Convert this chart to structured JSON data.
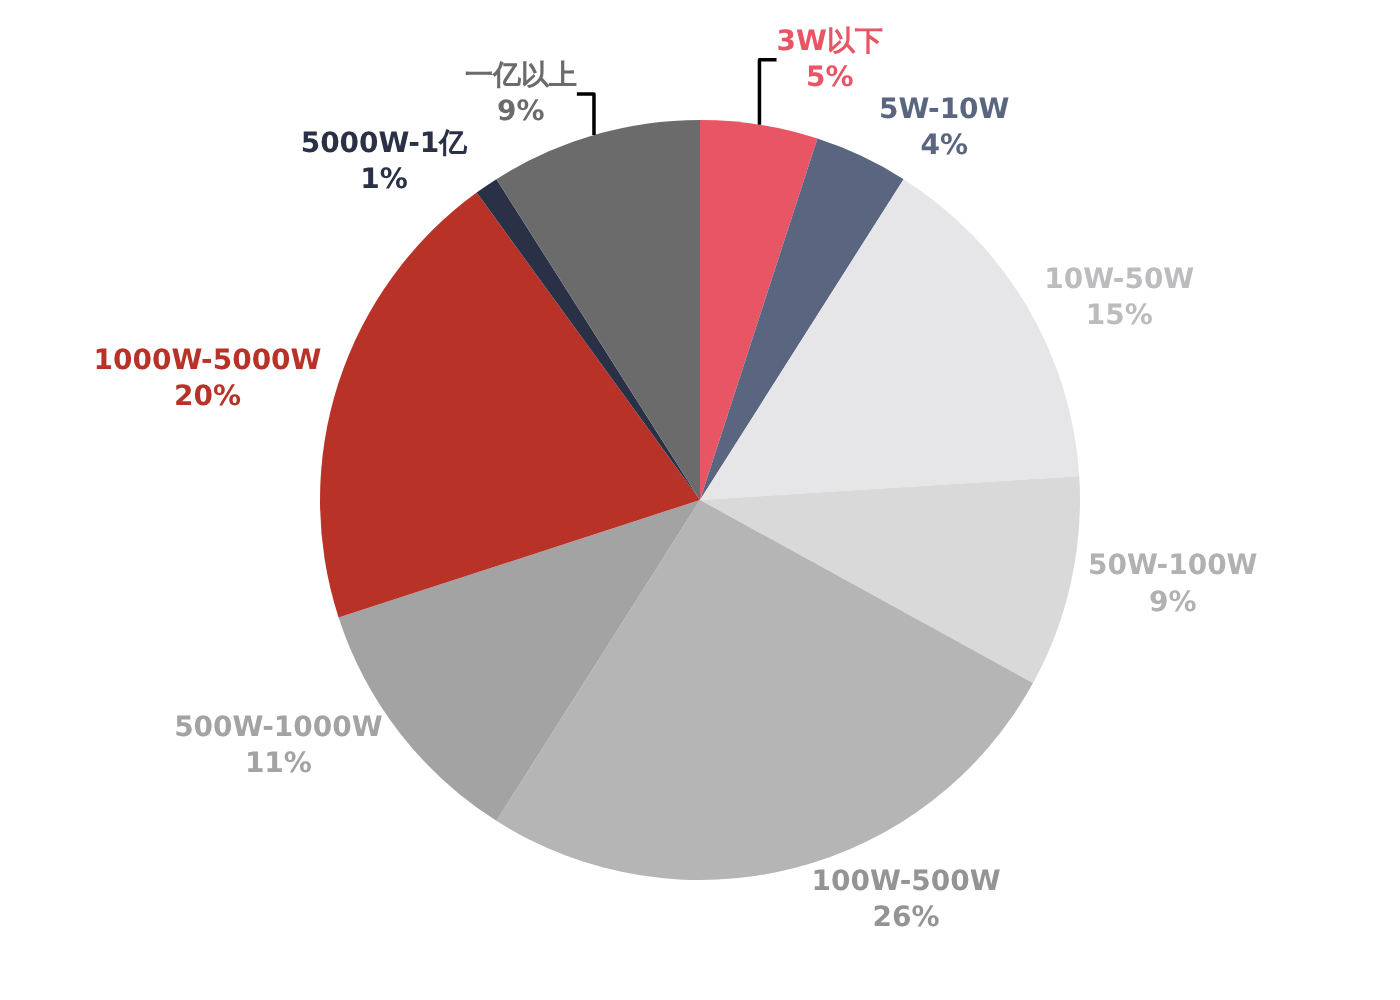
{
  "chart_data": {
    "type": "pie",
    "categories": [
      "3W以下",
      "5W-10W",
      "10W-50W",
      "50W-100W",
      "100W-500W",
      "500W-1000W",
      "1000W-5000W",
      "5000W-1亿",
      "一亿以上"
    ],
    "values": [
      5,
      4,
      15,
      9,
      26,
      11,
      20,
      1,
      9
    ],
    "colors": [
      "#e85565",
      "#5a6580",
      "#e6e6e8",
      "#d9d9d9",
      "#b5b5b5",
      "#a3a3a3",
      "#b83228",
      "#2a3147",
      "#6b6b6b"
    ],
    "value_labels": [
      "5%",
      "4%",
      "15%",
      "9%",
      "26%",
      "11%",
      "20%",
      "1%",
      "9%"
    ],
    "legend": false
  }
}
